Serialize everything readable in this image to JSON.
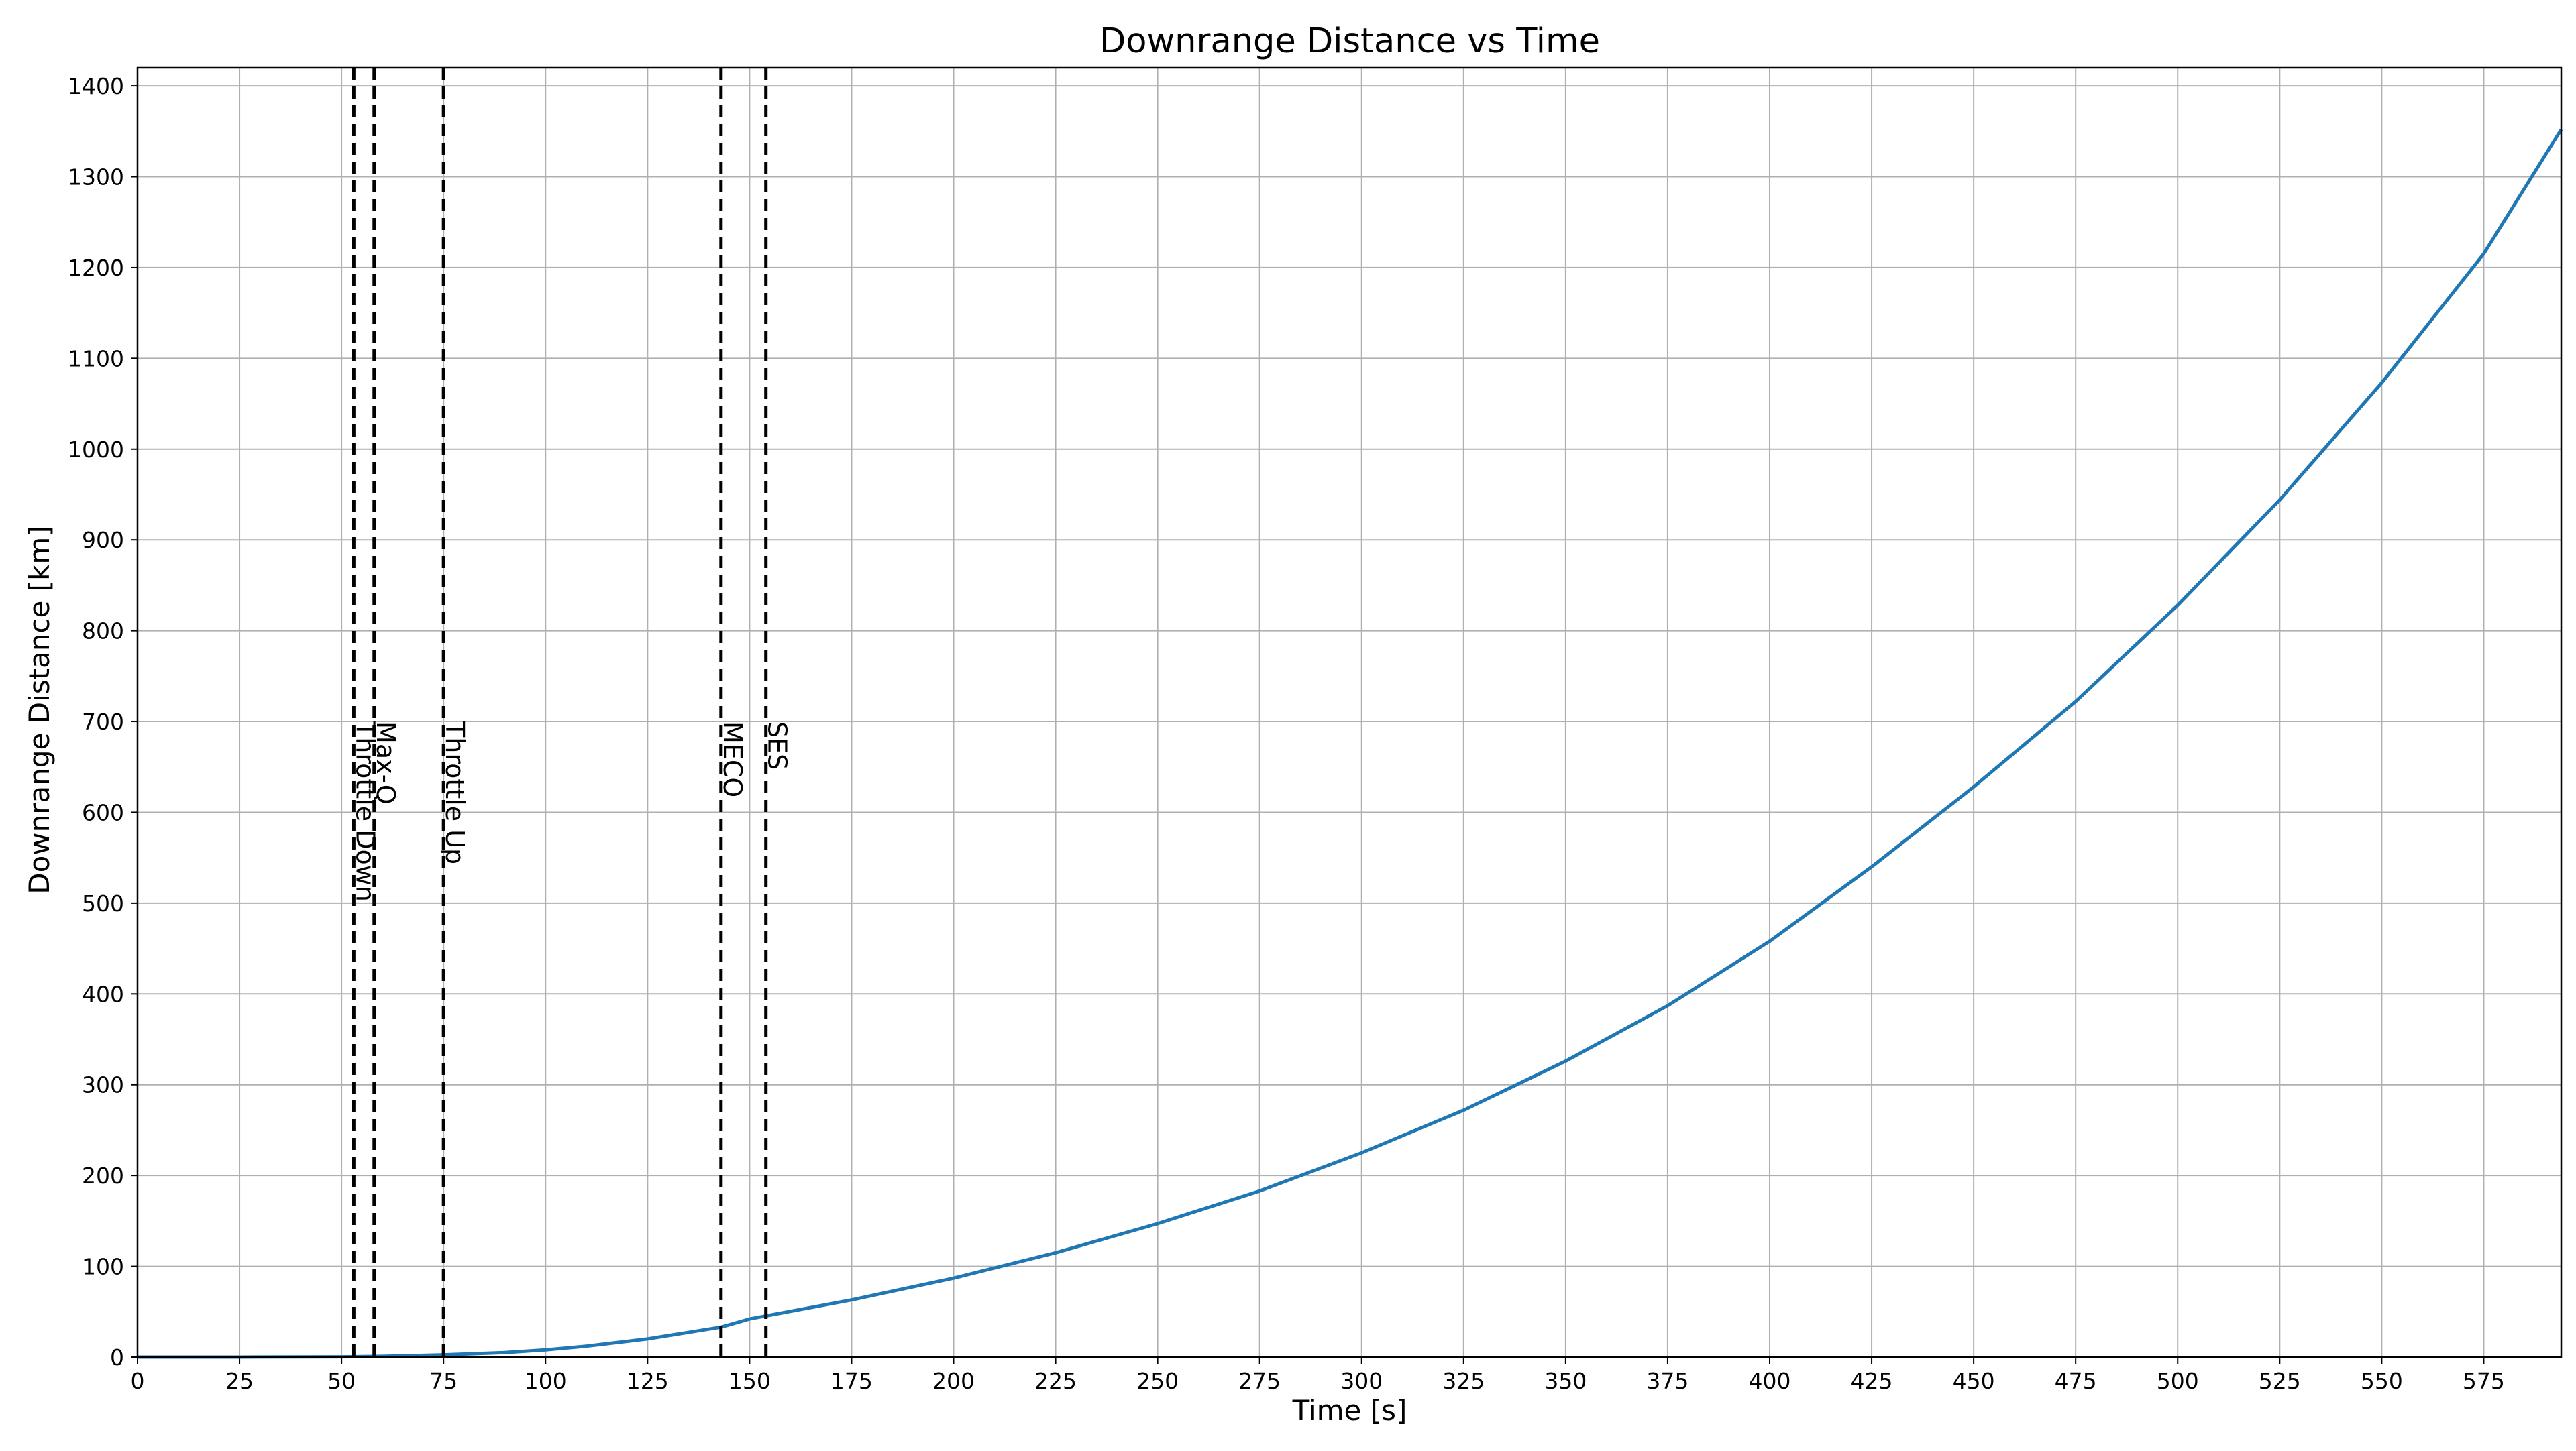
{
  "chart_data": {
    "type": "line",
    "title": "Downrange Distance vs Time",
    "xlabel": "Time [s]",
    "ylabel": "Downrange Distance [km]",
    "xlim": [
      0,
      594
    ],
    "ylim": [
      0,
      1420
    ],
    "x_ticks": [
      0,
      25,
      50,
      75,
      100,
      125,
      150,
      175,
      200,
      225,
      250,
      275,
      300,
      325,
      350,
      375,
      400,
      425,
      450,
      475,
      500,
      525,
      550,
      575
    ],
    "y_ticks": [
      0,
      100,
      200,
      300,
      400,
      500,
      600,
      700,
      800,
      900,
      1000,
      1100,
      1200,
      1300,
      1400
    ],
    "grid": true,
    "legend": "none",
    "series": [
      {
        "color": "#1f77b4",
        "x": [
          0,
          25,
          50,
          60,
          75,
          90,
          100,
          110,
          125,
          143,
          150,
          175,
          200,
          225,
          250,
          275,
          300,
          325,
          350,
          375,
          400,
          425,
          450,
          475,
          500,
          525,
          550,
          575,
          594
        ],
        "y": [
          0,
          0,
          0.3,
          0.8,
          2.5,
          5,
          8,
          12,
          20,
          33,
          42,
          63,
          87,
          115,
          147,
          183,
          225,
          272,
          326,
          387,
          458,
          540,
          628,
          722,
          828,
          944,
          1073,
          1215,
          1352
        ]
      }
    ],
    "events": [
      {
        "x": 53,
        "label": "Throttle Down"
      },
      {
        "x": 58,
        "label": "Max-Q"
      },
      {
        "x": 75,
        "label": "Throttle Up"
      },
      {
        "x": 143,
        "label": "MECO"
      },
      {
        "x": 154,
        "label": "SES"
      }
    ],
    "event_label_y": 700,
    "colors": {
      "grid": "#b0b0b0",
      "event_line": "#000000",
      "axes": "#000000"
    }
  }
}
